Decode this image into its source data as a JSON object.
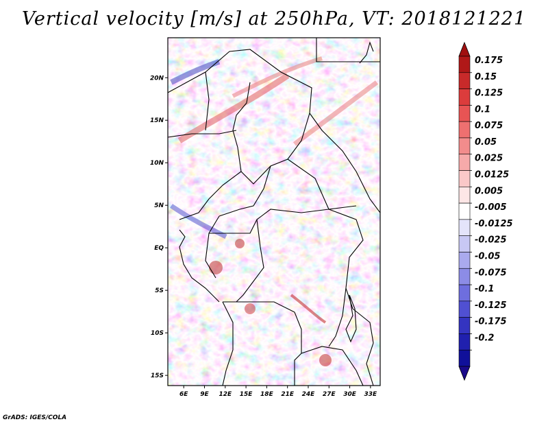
{
  "title": "Vertical velocity [m/s] at 250hPa, VT: 2018121221",
  "credit": "GrADS: IGES/COLA",
  "map": {
    "lat_labels": [
      "20N",
      "15N",
      "10N",
      "5N",
      "EQ",
      "5S",
      "10S",
      "15S"
    ],
    "lat_values": [
      20,
      15,
      10,
      5,
      0,
      -5,
      -10,
      -15
    ],
    "lon_labels": [
      "6E",
      "9E",
      "12E",
      "15E",
      "18E",
      "21E",
      "24E",
      "27E",
      "30E",
      "33E"
    ],
    "lon_values": [
      6,
      9,
      12,
      15,
      18,
      21,
      24,
      27,
      30,
      33
    ]
  },
  "colorbar": {
    "labels": [
      "0.175",
      "0.15",
      "0.125",
      "0.1",
      "0.075",
      "0.05",
      "0.025",
      "0.0125",
      "0.005",
      "-0.005",
      "-0.0125",
      "-0.025",
      "-0.05",
      "-0.075",
      "-0.1",
      "-0.125",
      "-0.175",
      "-0.2"
    ],
    "colors": [
      "#b01818",
      "#c82a2a",
      "#dc3c3c",
      "#e85454",
      "#ee7070",
      "#f28c8c",
      "#f6aaaa",
      "#fac8c8",
      "#fde6e6",
      "#ffffff",
      "#e4e4fa",
      "#c8c8f4",
      "#aaaaee",
      "#8c8ce6",
      "#6e6ede",
      "#5050d2",
      "#3434c0",
      "#2020ae",
      "#10109a"
    ],
    "top_arrow_color": "#a01010",
    "bottom_arrow_color": "#1a0a8a"
  }
}
